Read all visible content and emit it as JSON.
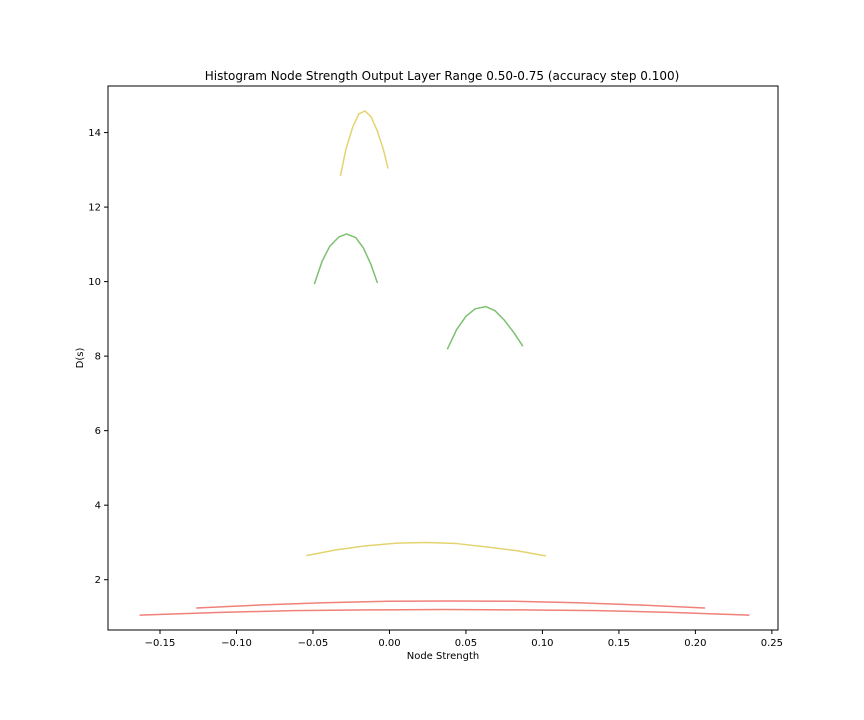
{
  "chart_data": {
    "type": "line",
    "title": "Histogram Node Strength Output Layer Range 0.50-0.75 (accuracy step 0.100)",
    "xlabel": "Node Strength",
    "ylabel": "D(s)",
    "xlim": [
      -0.184,
      0.254
    ],
    "ylim": [
      0.65,
      15.25
    ],
    "xticks": [
      -0.15,
      -0.1,
      -0.05,
      0.0,
      0.05,
      0.1,
      0.15,
      0.2,
      0.25
    ],
    "xtick_labels": [
      "−0.15",
      "−0.10",
      "−0.05",
      "0.00",
      "0.05",
      "0.10",
      "0.15",
      "0.20",
      "0.25"
    ],
    "yticks": [
      2,
      4,
      6,
      8,
      10,
      12,
      14
    ],
    "ytick_labels": [
      "2",
      "4",
      "6",
      "8",
      "10",
      "12",
      "14"
    ],
    "grid": false,
    "legend": "none",
    "series": [
      {
        "color": "#e3d470",
        "x": [
          -0.032,
          -0.0285,
          -0.024,
          -0.02,
          -0.016,
          -0.012,
          -0.008,
          -0.004,
          -0.001
        ],
        "y": [
          12.85,
          13.55,
          14.15,
          14.5,
          14.58,
          14.42,
          14.05,
          13.55,
          13.05
        ]
      },
      {
        "color": "#7cc070",
        "x": [
          -0.049,
          -0.044,
          -0.039,
          -0.033,
          -0.028,
          -0.022,
          -0.017,
          -0.012,
          -0.008
        ],
        "y": [
          9.95,
          10.55,
          10.95,
          11.2,
          11.28,
          11.18,
          10.9,
          10.45,
          9.98
        ]
      },
      {
        "color": "#7cc070",
        "x": [
          0.038,
          0.044,
          0.05,
          0.056,
          0.063,
          0.069,
          0.075,
          0.081,
          0.087
        ],
        "y": [
          8.2,
          8.72,
          9.07,
          9.27,
          9.33,
          9.22,
          8.97,
          8.65,
          8.28
        ]
      },
      {
        "color": "#e3d470",
        "x": [
          -0.054,
          -0.035,
          -0.015,
          0.005,
          0.024,
          0.044,
          0.063,
          0.083,
          0.102
        ],
        "y": [
          2.65,
          2.8,
          2.91,
          2.98,
          3.0,
          2.97,
          2.88,
          2.78,
          2.64
        ]
      },
      {
        "color": "#f0807a",
        "x": [
          -0.126,
          -0.085,
          -0.043,
          -0.002,
          0.04,
          0.081,
          0.123,
          0.164,
          0.206
        ],
        "y": [
          1.24,
          1.32,
          1.38,
          1.42,
          1.43,
          1.42,
          1.38,
          1.32,
          1.24
        ]
      },
      {
        "color": "#f0807a",
        "x": [
          -0.163,
          -0.113,
          -0.063,
          -0.013,
          0.036,
          0.086,
          0.136,
          0.186,
          0.235
        ],
        "y": [
          1.05,
          1.12,
          1.17,
          1.19,
          1.2,
          1.19,
          1.17,
          1.12,
          1.05
        ]
      }
    ]
  }
}
